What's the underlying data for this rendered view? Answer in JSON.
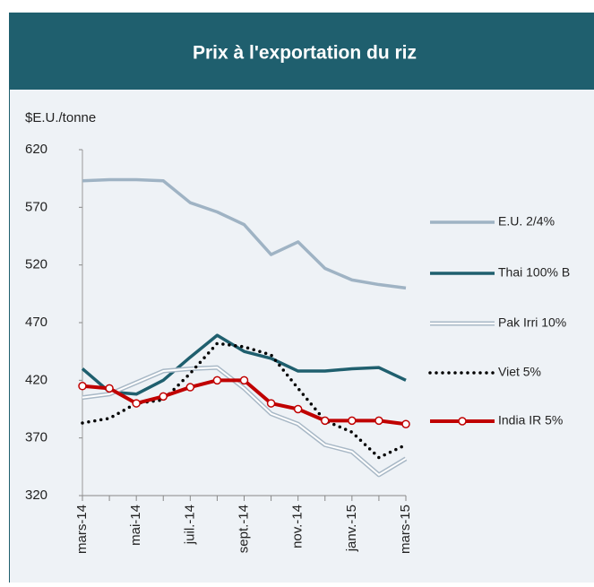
{
  "chart_data": {
    "type": "line",
    "title": "Prix à l'exportation du riz",
    "y_label": "$E.U./tonne",
    "categories": [
      "mars-14",
      null,
      "mai-14",
      null,
      "juil.-14",
      null,
      "sept.-14",
      null,
      "nov.-14",
      null,
      "janv.-15",
      null,
      "mars-15"
    ],
    "ylim": [
      320,
      620
    ],
    "yticks": [
      320,
      370,
      420,
      470,
      520,
      570,
      620
    ],
    "series": [
      {
        "name": "E.U. 2/4%",
        "color": "#9fb3c4",
        "style": "solid",
        "values": [
          593,
          594,
          594,
          593,
          574,
          566,
          555,
          529,
          540,
          517,
          507,
          503,
          500
        ]
      },
      {
        "name": "Thai 100% B",
        "color": "#1f5f6e",
        "style": "solid",
        "values": [
          430,
          410,
          408,
          420,
          440,
          459,
          445,
          439,
          428,
          428,
          430,
          431,
          420
        ]
      },
      {
        "name": "Pak Irri 10%",
        "color": "#a8b8c6",
        "style": "double",
        "values": [
          405,
          408,
          418,
          428,
          430,
          431,
          413,
          391,
          382,
          364,
          358,
          338,
          352
        ]
      },
      {
        "name": "Viet 5%",
        "color": "#000000",
        "style": "dotted",
        "values": [
          383,
          387,
          400,
          403,
          426,
          452,
          449,
          442,
          413,
          385,
          375,
          353,
          364
        ]
      },
      {
        "name": "India IR 5%",
        "color": "#c00000",
        "style": "markers",
        "values": [
          415,
          413,
          400,
          406,
          414,
          420,
          420,
          400,
          395,
          385,
          385,
          385,
          382
        ]
      }
    ]
  }
}
